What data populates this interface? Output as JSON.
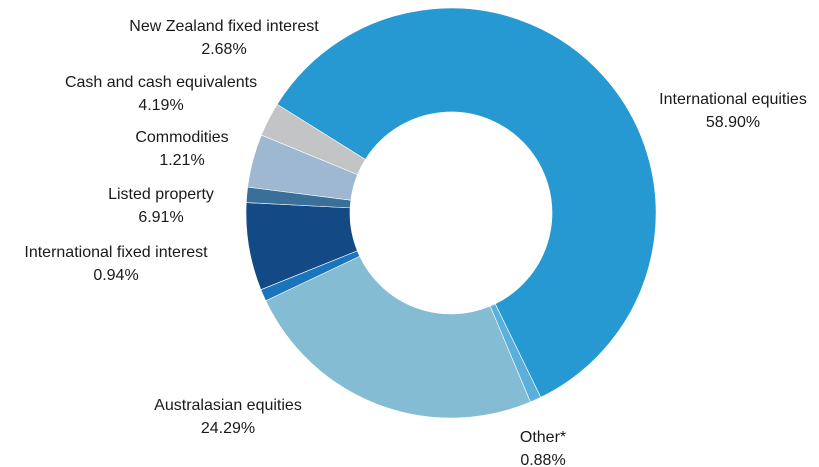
{
  "chart_data": {
    "type": "pie",
    "variant": "donut",
    "legend": "none",
    "title": "",
    "slices": [
      {
        "label": "International equities",
        "value": 58.9,
        "display": "58.90%",
        "color": "#2799d2"
      },
      {
        "label": "Other*",
        "value": 0.88,
        "display": "0.88%",
        "color": "#5bb0db"
      },
      {
        "label": "Australasian equities",
        "value": 24.29,
        "display": "24.29%",
        "color": "#83bcd3"
      },
      {
        "label": "International fixed interest",
        "value": 0.94,
        "display": "0.94%",
        "color": "#1b75bc"
      },
      {
        "label": "Listed property",
        "value": 6.91,
        "display": "6.91%",
        "color": "#134a86"
      },
      {
        "label": "Commodities",
        "value": 1.21,
        "display": "1.21%",
        "color": "#3a6f9a"
      },
      {
        "label": "Cash and cash equivalents",
        "value": 4.19,
        "display": "4.19%",
        "color": "#9db8d0"
      },
      {
        "label": "New Zealand fixed interest",
        "value": 2.68,
        "display": "2.68%",
        "color": "#c2c4c6"
      }
    ]
  }
}
